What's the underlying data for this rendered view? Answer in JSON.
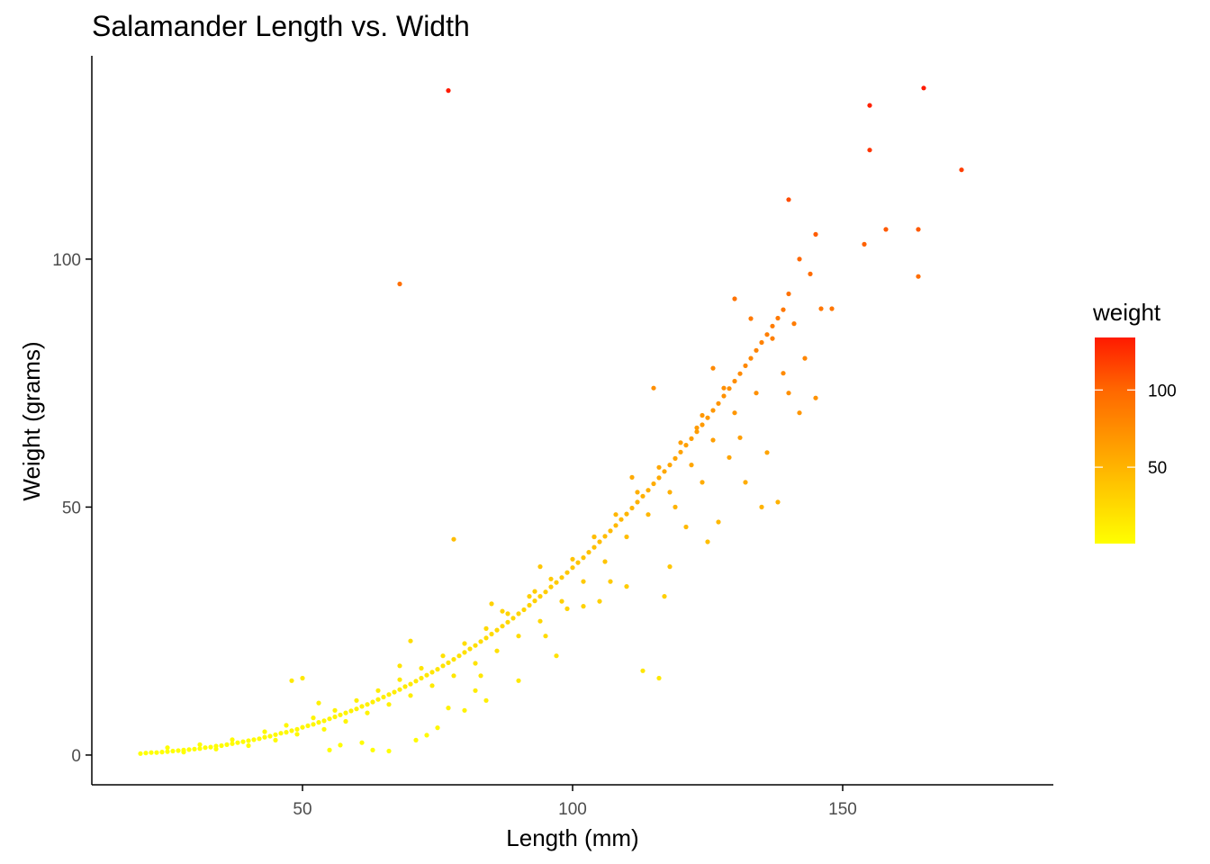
{
  "chart_data": {
    "type": "scatter",
    "title": "Salamander Length vs. Width",
    "xlabel": "Length (mm)",
    "ylabel": "Weight (grams)",
    "xlim": [
      11,
      189
    ],
    "ylim": [
      -6,
      141
    ],
    "x_ticks": [
      50,
      100,
      150
    ],
    "y_ticks": [
      0,
      50,
      100
    ],
    "grid": false,
    "color_by": "weight",
    "legend": {
      "title": "weight",
      "placement": "right",
      "type": "gradient",
      "range": [
        0.5,
        134
      ],
      "ticks": [
        50,
        100
      ],
      "colors": [
        "#FFFF00",
        "#FFCC00",
        "#FF9900",
        "#FF6600",
        "#FF1A00"
      ]
    },
    "points": [
      [
        20,
        0.3
      ],
      [
        21,
        0.4
      ],
      [
        22,
        0.5
      ],
      [
        23,
        0.5
      ],
      [
        24,
        0.6
      ],
      [
        25,
        0.7
      ],
      [
        26,
        0.8
      ],
      [
        27,
        0.9
      ],
      [
        28,
        1.0
      ],
      [
        29,
        1.1
      ],
      [
        30,
        1.2
      ],
      [
        31,
        1.3
      ],
      [
        32,
        1.5
      ],
      [
        33,
        1.6
      ],
      [
        34,
        1.8
      ],
      [
        35,
        1.9
      ],
      [
        36,
        2.1
      ],
      [
        37,
        2.3
      ],
      [
        38,
        2.5
      ],
      [
        39,
        2.7
      ],
      [
        40,
        2.9
      ],
      [
        41,
        3.1
      ],
      [
        42,
        3.3
      ],
      [
        43,
        3.6
      ],
      [
        44,
        3.8
      ],
      [
        45,
        4.1
      ],
      [
        46,
        4.4
      ],
      [
        47,
        4.6
      ],
      [
        48,
        4.9
      ],
      [
        49,
        5.2
      ],
      [
        50,
        5.6
      ],
      [
        51,
        5.9
      ],
      [
        52,
        6.2
      ],
      [
        53,
        6.6
      ],
      [
        54,
        6.9
      ],
      [
        55,
        7.3
      ],
      [
        56,
        7.7
      ],
      [
        57,
        8.1
      ],
      [
        58,
        8.5
      ],
      [
        59,
        8.9
      ],
      [
        60,
        9.3
      ],
      [
        61,
        9.8
      ],
      [
        62,
        10.2
      ],
      [
        63,
        10.7
      ],
      [
        64,
        11.2
      ],
      [
        65,
        11.7
      ],
      [
        66,
        12.2
      ],
      [
        67,
        12.7
      ],
      [
        68,
        13.2
      ],
      [
        69,
        13.8
      ],
      [
        70,
        14.3
      ],
      [
        71,
        14.9
      ],
      [
        72,
        15.5
      ],
      [
        73,
        16.1
      ],
      [
        74,
        16.7
      ],
      [
        75,
        17.3
      ],
      [
        76,
        18.0
      ],
      [
        77,
        18.6
      ],
      [
        78,
        19.3
      ],
      [
        79,
        20.0
      ],
      [
        80,
        20.7
      ],
      [
        81,
        21.4
      ],
      [
        82,
        22.1
      ],
      [
        83,
        22.9
      ],
      [
        84,
        23.6
      ],
      [
        85,
        24.4
      ],
      [
        86,
        25.2
      ],
      [
        87,
        26.0
      ],
      [
        88,
        26.8
      ],
      [
        89,
        27.6
      ],
      [
        90,
        28.5
      ],
      [
        91,
        29.3
      ],
      [
        92,
        30.2
      ],
      [
        93,
        31.1
      ],
      [
        94,
        32.0
      ],
      [
        95,
        32.9
      ],
      [
        96,
        33.9
      ],
      [
        97,
        34.8
      ],
      [
        98,
        35.8
      ],
      [
        99,
        36.8
      ],
      [
        100,
        37.8
      ],
      [
        101,
        38.8
      ],
      [
        102,
        39.8
      ],
      [
        103,
        40.9
      ],
      [
        104,
        41.9
      ],
      [
        105,
        43.0
      ],
      [
        106,
        44.1
      ],
      [
        107,
        45.2
      ],
      [
        108,
        46.3
      ],
      [
        109,
        47.5
      ],
      [
        110,
        48.6
      ],
      [
        111,
        49.8
      ],
      [
        112,
        51.0
      ],
      [
        113,
        52.2
      ],
      [
        114,
        53.4
      ],
      [
        115,
        54.7
      ],
      [
        116,
        55.9
      ],
      [
        117,
        57.2
      ],
      [
        118,
        58.5
      ],
      [
        119,
        59.8
      ],
      [
        120,
        61.1
      ],
      [
        121,
        62.5
      ],
      [
        122,
        63.8
      ],
      [
        123,
        65.2
      ],
      [
        124,
        66.6
      ],
      [
        125,
        68.0
      ],
      [
        126,
        69.5
      ],
      [
        127,
        70.9
      ],
      [
        128,
        72.4
      ],
      [
        129,
        73.9
      ],
      [
        130,
        75.4
      ],
      [
        131,
        76.9
      ],
      [
        132,
        78.5
      ],
      [
        133,
        80.0
      ],
      [
        134,
        81.6
      ],
      [
        135,
        83.2
      ],
      [
        136,
        84.8
      ],
      [
        137,
        86.5
      ],
      [
        138,
        88.1
      ],
      [
        139,
        89.8
      ],
      [
        25,
        1.5
      ],
      [
        28,
        0.6
      ],
      [
        31,
        2.1
      ],
      [
        34,
        1.2
      ],
      [
        37,
        3.1
      ],
      [
        40,
        1.9
      ],
      [
        43,
        4.7
      ],
      [
        45,
        3.0
      ],
      [
        47,
        6.0
      ],
      [
        49,
        4.2
      ],
      [
        52,
        7.5
      ],
      [
        54,
        5.2
      ],
      [
        56,
        9.0
      ],
      [
        58,
        6.8
      ],
      [
        60,
        11.0
      ],
      [
        62,
        8.5
      ],
      [
        64,
        13.0
      ],
      [
        66,
        10.2
      ],
      [
        68,
        15.2
      ],
      [
        70,
        12.0
      ],
      [
        72,
        17.5
      ],
      [
        74,
        14.0
      ],
      [
        76,
        20.0
      ],
      [
        78,
        16.0
      ],
      [
        80,
        22.5
      ],
      [
        82,
        18.5
      ],
      [
        84,
        25.5
      ],
      [
        86,
        21.0
      ],
      [
        88,
        28.5
      ],
      [
        90,
        24.0
      ],
      [
        92,
        32.0
      ],
      [
        94,
        27.0
      ],
      [
        96,
        35.5
      ],
      [
        98,
        31.0
      ],
      [
        100,
        39.5
      ],
      [
        102,
        35.0
      ],
      [
        104,
        44.0
      ],
      [
        106,
        39.0
      ],
      [
        108,
        48.5
      ],
      [
        110,
        44.0
      ],
      [
        112,
        53.0
      ],
      [
        114,
        48.5
      ],
      [
        116,
        58.0
      ],
      [
        118,
        53.0
      ],
      [
        120,
        63.0
      ],
      [
        122,
        58.5
      ],
      [
        124,
        68.5
      ],
      [
        126,
        63.5
      ],
      [
        128,
        74.0
      ],
      [
        130,
        69.0
      ],
      [
        48,
        15
      ],
      [
        50,
        15.5
      ],
      [
        53,
        10.5
      ],
      [
        55,
        1.0
      ],
      [
        57,
        2.0
      ],
      [
        61,
        2.5
      ],
      [
        63,
        1.0
      ],
      [
        66,
        0.8
      ],
      [
        68,
        18.0
      ],
      [
        70,
        23.0
      ],
      [
        71,
        3.0
      ],
      [
        73,
        4.0
      ],
      [
        75,
        5.5
      ],
      [
        77,
        9.5
      ],
      [
        80,
        9.0
      ],
      [
        82,
        13.0
      ],
      [
        83,
        16.0
      ],
      [
        84,
        11.0
      ],
      [
        85,
        30.5
      ],
      [
        87,
        29.0
      ],
      [
        90,
        15.0
      ],
      [
        93,
        33.0
      ],
      [
        94,
        38.0
      ],
      [
        95,
        24.0
      ],
      [
        97,
        20.0
      ],
      [
        99,
        29.5
      ],
      [
        102,
        30.0
      ],
      [
        104,
        44.0
      ],
      [
        105,
        31.0
      ],
      [
        107,
        35.0
      ],
      [
        110,
        34.0
      ],
      [
        111,
        56.0
      ],
      [
        113,
        17.0
      ],
      [
        115,
        74.0
      ],
      [
        116,
        15.5
      ],
      [
        117,
        32.0
      ],
      [
        118,
        38.0
      ],
      [
        119,
        50.0
      ],
      [
        121,
        46.0
      ],
      [
        123,
        66.0
      ],
      [
        124,
        55.0
      ],
      [
        125,
        43.0
      ],
      [
        126,
        78.0
      ],
      [
        127,
        47.0
      ],
      [
        129,
        60.0
      ],
      [
        130,
        92.0
      ],
      [
        131,
        64.0
      ],
      [
        132,
        55.0
      ],
      [
        133,
        88.0
      ],
      [
        134,
        73.0
      ],
      [
        135,
        50.0
      ],
      [
        136,
        61.0
      ],
      [
        137,
        84.0
      ],
      [
        138,
        51.0
      ],
      [
        139,
        77.0
      ],
      [
        140,
        93.0
      ],
      [
        141,
        87.0
      ],
      [
        142,
        69.0
      ],
      [
        143,
        80.0
      ],
      [
        144,
        97.0
      ],
      [
        145,
        72.0
      ],
      [
        146,
        90.0
      ],
      [
        148,
        90.0
      ],
      [
        140,
        73.0
      ],
      [
        142,
        100.0
      ],
      [
        145,
        105.0
      ],
      [
        140,
        112.0
      ],
      [
        68,
        95.0
      ],
      [
        77,
        134.0
      ],
      [
        78,
        43.5
      ],
      [
        154,
        103.0
      ],
      [
        155,
        122.0
      ],
      [
        155,
        131.0
      ],
      [
        158,
        106.0
      ],
      [
        164,
        106.0
      ],
      [
        164,
        96.5
      ],
      [
        165,
        134.5
      ],
      [
        172,
        118.0
      ]
    ]
  }
}
